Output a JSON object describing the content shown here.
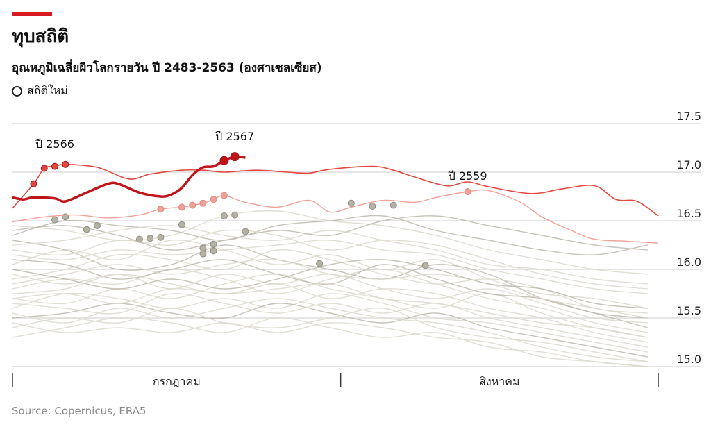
{
  "header": {
    "title": "ทุบสถิติ",
    "subtitle": "อุณหภูมิเฉลี่ยผิวโลกรายวัน ปี 2483-2563 (องศาเซลเซียส)",
    "legend_label": "สถิติใหม่"
  },
  "source": "Source: Copernicus, ERA5",
  "colors": {
    "accent": "#d71920",
    "y2567": "#c0141b",
    "y2566": "#e3473d",
    "y2559": "#f0a096",
    "background": "#dcd8cc",
    "background_dark": "#bdb9ad",
    "record_dot": "#b5b2a5"
  },
  "chart_data": {
    "type": "line",
    "title": "อุณหภูมิเฉลี่ยผิวโลกรายวัน ปี 2483-2563 (องศาเซลเซียส)",
    "xlabel": "",
    "ylabel": "",
    "x_unit": "day since 1 July",
    "xlim": [
      0,
      61
    ],
    "ylim": [
      15.0,
      17.5
    ],
    "yticks": [
      "15.0",
      "15.5",
      "16.0",
      "16.5",
      "17.0",
      "17.5"
    ],
    "months": [
      {
        "label": "กรกฎาคม",
        "start": 0,
        "end": 31
      },
      {
        "label": "สิงหาคม",
        "start": 31,
        "end": 61
      }
    ],
    "highlight_series": [
      {
        "name": "ปี 2566",
        "key": "y2566",
        "width": 1.6,
        "x": [
          0,
          2,
          3,
          4,
          5,
          8,
          11,
          13,
          16,
          18,
          20,
          23,
          26,
          28,
          30,
          34,
          36,
          38,
          41,
          43,
          45,
          49,
          52,
          55,
          57,
          59,
          61
        ],
        "values": [
          16.63,
          16.88,
          17.04,
          17.06,
          17.08,
          17.05,
          16.93,
          16.98,
          17.02,
          17.02,
          17.0,
          17.02,
          17.0,
          16.99,
          17.03,
          17.06,
          17.02,
          16.95,
          16.86,
          16.9,
          16.85,
          16.78,
          16.83,
          16.86,
          16.72,
          16.7,
          16.55
        ],
        "records": [
          2,
          3,
          4,
          5
        ]
      },
      {
        "name": "ปี 2559",
        "key": "y2559",
        "width": 1.4,
        "x": [
          0,
          3,
          6,
          9,
          12,
          14,
          16,
          17,
          18,
          19,
          20,
          22,
          25,
          28,
          30,
          32,
          35,
          38,
          40,
          43,
          45,
          48,
          50,
          53,
          55,
          58,
          61
        ],
        "values": [
          16.49,
          16.54,
          16.56,
          16.53,
          16.56,
          16.62,
          16.64,
          16.66,
          16.68,
          16.72,
          16.76,
          16.69,
          16.64,
          16.71,
          16.59,
          16.64,
          16.71,
          16.69,
          16.74,
          16.8,
          16.81,
          16.69,
          16.54,
          16.39,
          16.31,
          16.29,
          16.27
        ],
        "records": [
          14,
          16,
          17,
          18,
          19,
          20,
          43
        ]
      },
      {
        "name": "ปี 2567",
        "key": "y2567",
        "width": 3.5,
        "x": [
          0,
          1,
          2,
          4,
          5,
          7,
          9,
          10,
          12,
          14,
          15,
          16,
          17,
          18,
          19,
          20,
          21,
          22
        ],
        "values": [
          16.74,
          16.72,
          16.74,
          16.73,
          16.7,
          16.79,
          16.88,
          16.88,
          16.79,
          16.75,
          16.77,
          16.84,
          16.97,
          17.05,
          17.06,
          17.12,
          17.16,
          17.15
        ],
        "records": [
          20,
          21
        ]
      }
    ],
    "annotations": [
      {
        "text": "ปี 2566",
        "x": 4,
        "y": 17.25
      },
      {
        "text": "ปี 2567",
        "x": 21,
        "y": 17.33
      },
      {
        "text": "ปี 2559",
        "x": 43,
        "y": 16.92
      }
    ],
    "background_x": [
      0,
      5,
      10,
      15,
      20,
      25,
      30,
      35,
      40,
      45,
      50,
      55,
      60
    ],
    "background_series": [
      [
        16.45,
        16.4,
        16.3,
        16.35,
        16.55,
        16.6,
        16.5,
        16.45,
        16.35,
        16.2,
        16.1,
        16.0,
        15.95
      ],
      [
        16.35,
        16.5,
        16.45,
        16.4,
        16.3,
        16.45,
        16.5,
        16.55,
        16.4,
        16.3,
        16.2,
        16.15,
        16.25
      ],
      [
        16.2,
        16.15,
        16.3,
        16.25,
        16.4,
        16.35,
        16.2,
        16.3,
        16.25,
        16.1,
        15.95,
        15.85,
        15.8
      ],
      [
        16.05,
        16.2,
        16.1,
        16.3,
        16.2,
        16.05,
        16.15,
        16.0,
        16.1,
        15.9,
        15.75,
        15.7,
        15.6
      ],
      [
        15.9,
        16.0,
        16.15,
        16.1,
        16.0,
        16.2,
        16.1,
        15.95,
        15.85,
        15.9,
        15.8,
        15.6,
        15.55
      ],
      [
        16.3,
        16.2,
        16.0,
        16.05,
        16.25,
        16.1,
        16.0,
        15.9,
        16.05,
        15.95,
        15.7,
        15.55,
        15.4
      ],
      [
        15.8,
        15.9,
        15.85,
        16.0,
        15.9,
        15.75,
        15.9,
        16.0,
        15.85,
        15.7,
        15.6,
        15.45,
        15.35
      ],
      [
        15.7,
        15.65,
        15.8,
        15.7,
        15.85,
        15.95,
        15.8,
        15.7,
        15.6,
        15.75,
        15.55,
        15.4,
        15.3
      ],
      [
        15.6,
        15.75,
        15.7,
        15.6,
        15.7,
        15.6,
        15.75,
        15.65,
        15.5,
        15.45,
        15.35,
        15.25,
        15.15
      ],
      [
        15.5,
        15.55,
        15.65,
        15.55,
        15.5,
        15.65,
        15.55,
        15.45,
        15.55,
        15.4,
        15.3,
        15.2,
        15.1
      ],
      [
        15.4,
        15.5,
        15.45,
        15.6,
        15.45,
        15.4,
        15.5,
        15.6,
        15.4,
        15.3,
        15.25,
        15.15,
        15.05
      ],
      [
        15.3,
        15.4,
        15.5,
        15.45,
        15.35,
        15.5,
        15.4,
        15.3,
        15.35,
        15.2,
        15.15,
        15.05,
        15.0
      ],
      [
        15.95,
        15.85,
        15.95,
        15.8,
        15.95,
        15.85,
        15.95,
        15.8,
        15.7,
        15.8,
        15.65,
        15.5,
        15.45
      ],
      [
        16.1,
        16.05,
        15.9,
        16.0,
        16.1,
        15.95,
        15.85,
        16.05,
        15.9,
        15.75,
        15.7,
        15.55,
        15.5
      ],
      [
        15.65,
        15.6,
        15.55,
        15.75,
        15.65,
        15.55,
        15.65,
        15.55,
        15.65,
        15.5,
        15.4,
        15.3,
        15.2
      ],
      [
        15.75,
        15.8,
        15.95,
        15.85,
        15.75,
        15.85,
        15.7,
        15.8,
        15.75,
        15.6,
        15.5,
        15.35,
        15.25
      ],
      [
        15.55,
        15.45,
        15.6,
        15.5,
        15.6,
        15.7,
        15.6,
        15.5,
        15.45,
        15.35,
        15.2,
        15.1,
        15.05
      ],
      [
        16.4,
        16.45,
        16.35,
        16.2,
        16.3,
        16.4,
        16.35,
        16.5,
        16.55,
        16.45,
        16.35,
        16.25,
        16.2
      ],
      [
        16.25,
        16.3,
        16.4,
        16.45,
        16.35,
        16.3,
        16.4,
        16.3,
        16.2,
        16.05,
        16.0,
        15.9,
        15.85
      ],
      [
        15.85,
        15.95,
        16.05,
        15.95,
        16.05,
        16.1,
        15.95,
        15.9,
        15.95,
        15.85,
        15.7,
        15.6,
        15.5
      ],
      [
        15.45,
        15.35,
        15.4,
        15.35,
        15.45,
        15.35,
        15.45,
        15.4,
        15.3,
        15.25,
        15.1,
        15.05,
        15.0
      ],
      [
        16.0,
        15.9,
        15.8,
        15.9,
        15.8,
        15.9,
        16.05,
        16.1,
        16.0,
        15.85,
        15.8,
        15.65,
        15.6
      ],
      [
        16.15,
        16.1,
        16.2,
        16.15,
        16.2,
        16.25,
        16.3,
        16.2,
        16.15,
        16.0,
        15.9,
        15.8,
        15.75
      ],
      [
        15.7,
        15.75,
        15.65,
        15.8,
        15.75,
        15.8,
        15.85,
        15.7,
        15.65,
        15.55,
        15.45,
        15.4,
        15.3
      ]
    ],
    "record_dots_other_years": [
      [
        4,
        16.51
      ],
      [
        5,
        16.54
      ],
      [
        7,
        16.41
      ],
      [
        8,
        16.45
      ],
      [
        12,
        16.31
      ],
      [
        13,
        16.32
      ],
      [
        14,
        16.33
      ],
      [
        16,
        16.46
      ],
      [
        18,
        16.22
      ],
      [
        18,
        16.16
      ],
      [
        19,
        16.26
      ],
      [
        19,
        16.19
      ],
      [
        20,
        16.55
      ],
      [
        21,
        16.56
      ],
      [
        22,
        16.39
      ],
      [
        29,
        16.06
      ],
      [
        32,
        16.68
      ],
      [
        34,
        16.65
      ],
      [
        36,
        16.66
      ],
      [
        39,
        16.04
      ]
    ]
  }
}
